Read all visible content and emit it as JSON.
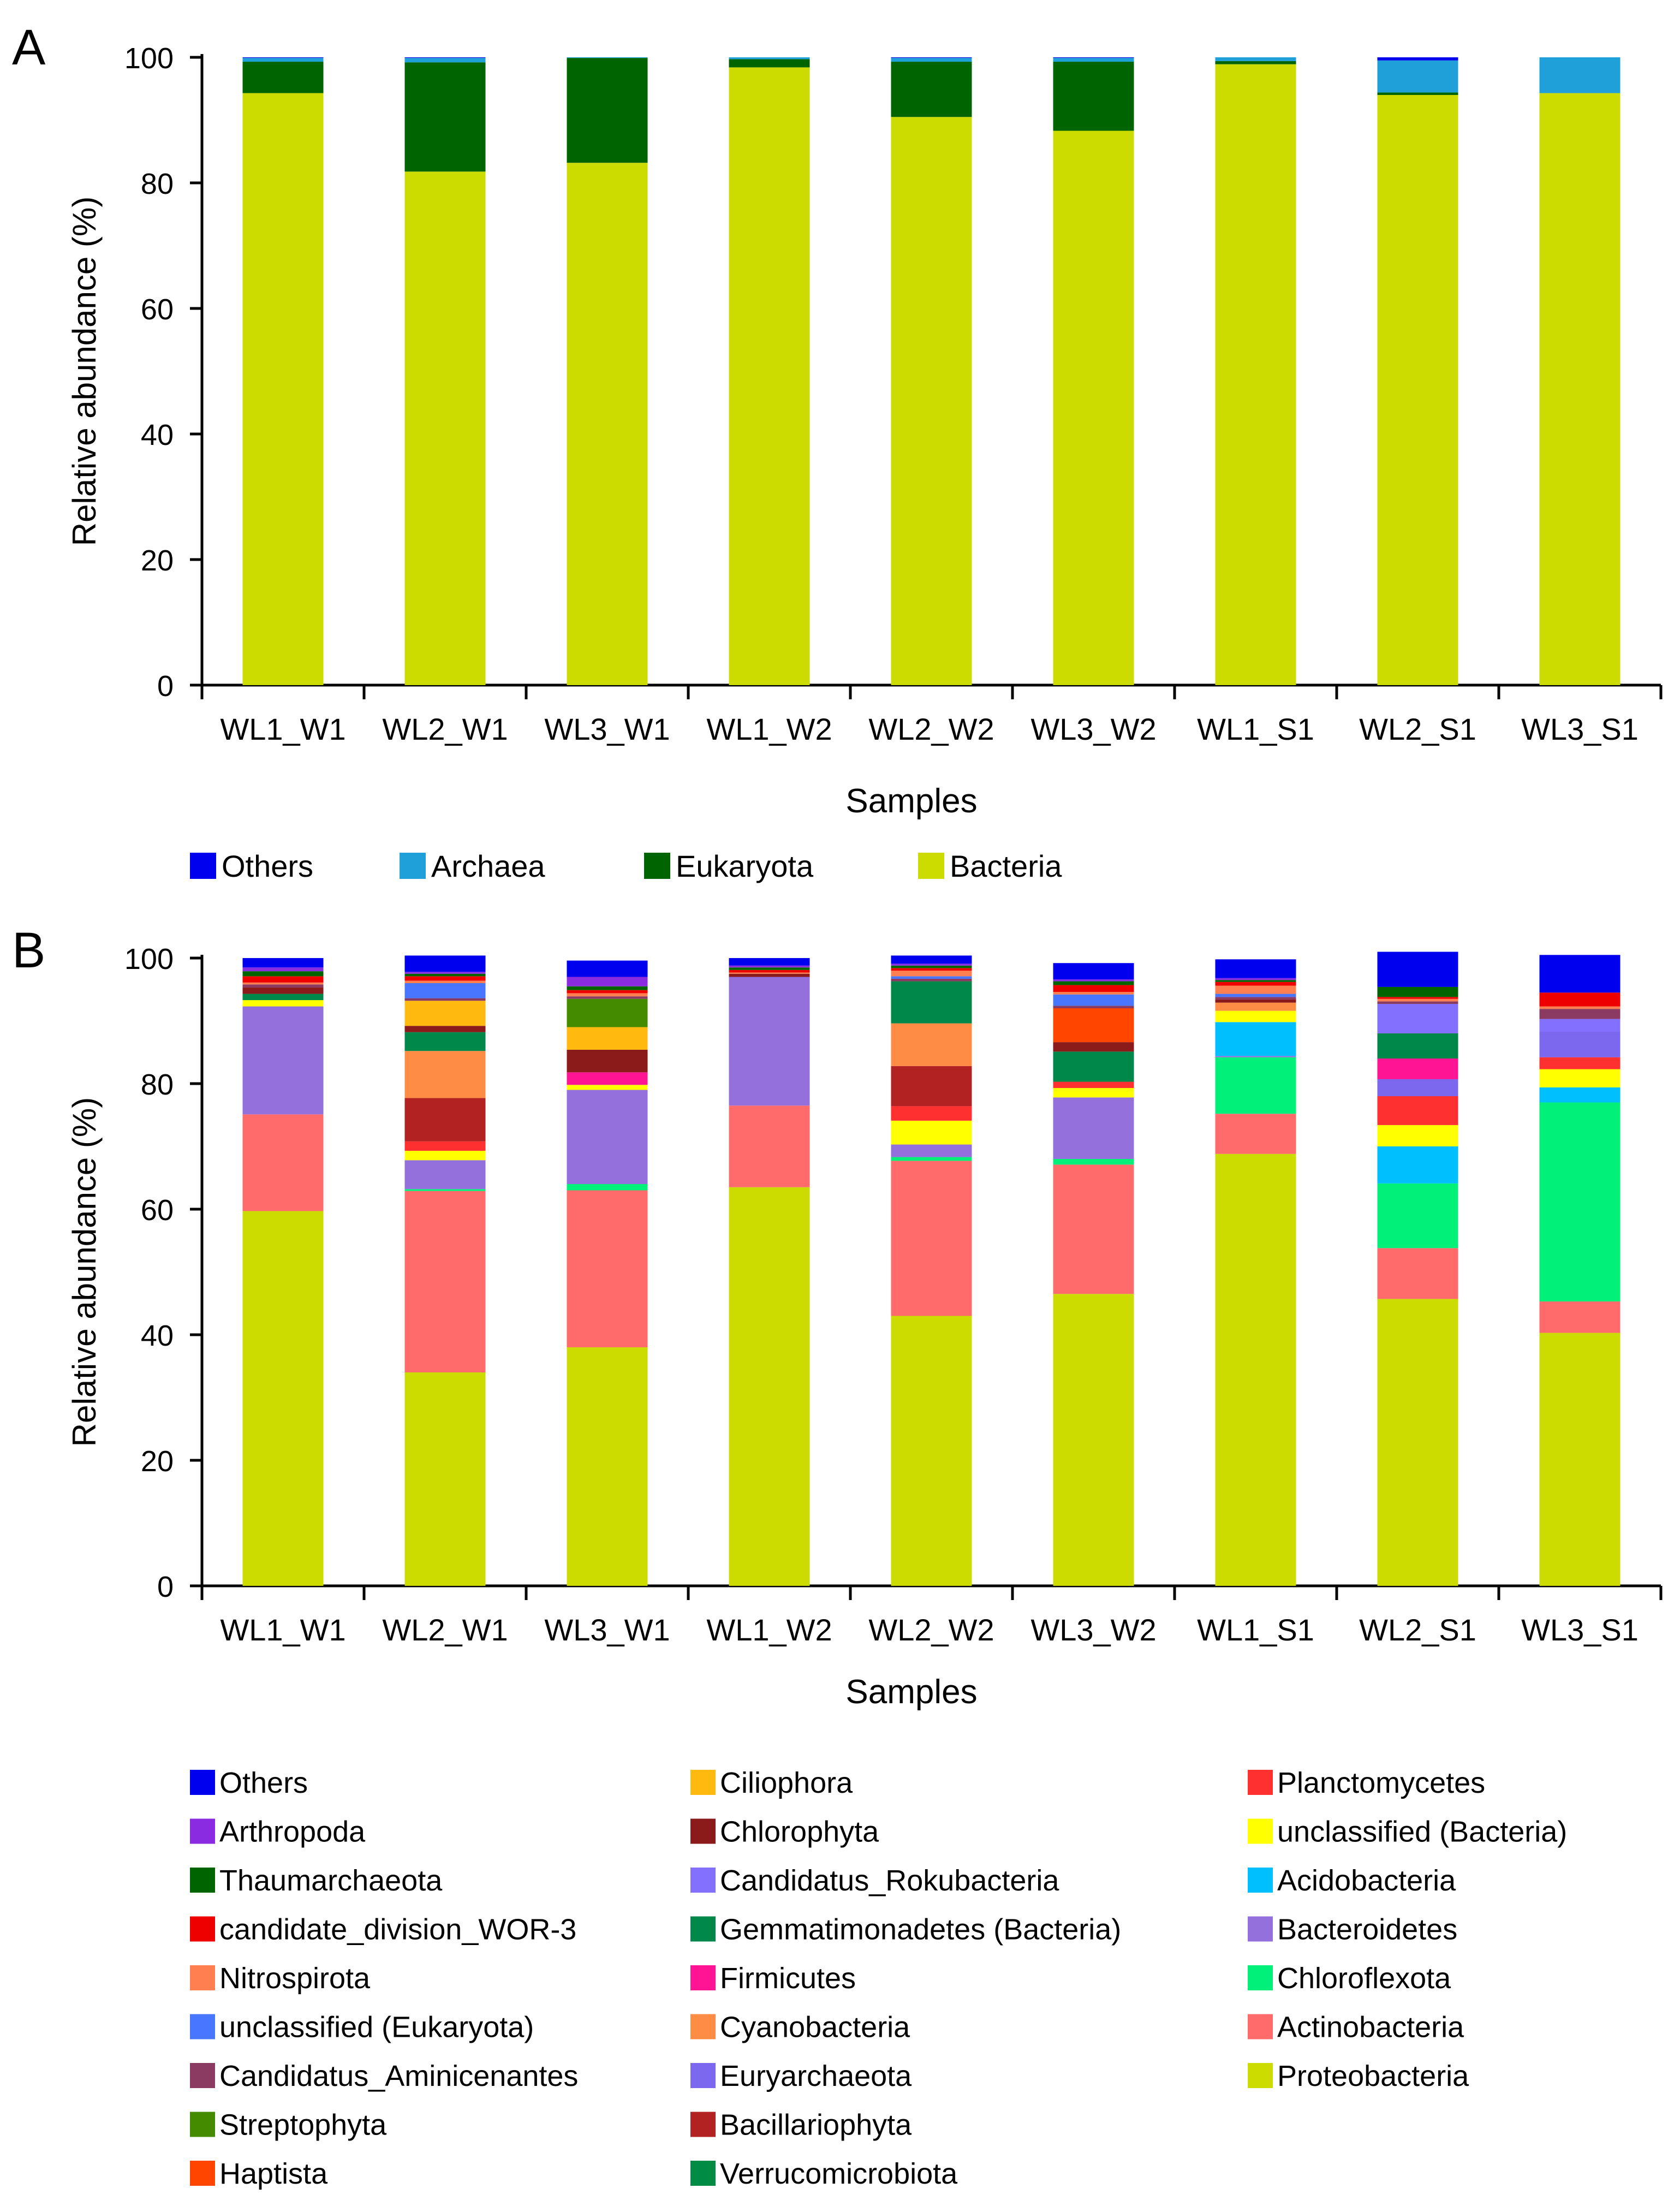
{
  "chart_data": [
    {
      "panel": "A",
      "type": "bar",
      "stacked": true,
      "xlabel": "Samples",
      "ylabel": "Relative abundance (%)",
      "ylim": [
        0,
        100
      ],
      "yticks": [
        0,
        20,
        40,
        60,
        80,
        100
      ],
      "categories": [
        "WL1_W1",
        "WL2_W1",
        "WL3_W1",
        "WL1_W2",
        "WL2_W2",
        "WL3_W2",
        "WL1_S1",
        "WL2_S1",
        "WL3_S1"
      ],
      "legend_position": "bottom",
      "legend": [
        "Others",
        "Archaea",
        "Eukaryota",
        "Bacteria"
      ],
      "series": [
        {
          "name": "Bacteria",
          "color": "#CCDB00",
          "values": [
            94.3,
            81.8,
            83.2,
            98.4,
            90.5,
            88.3,
            98.9,
            94.0,
            94.3
          ]
        },
        {
          "name": "Eukaryota",
          "color": "#006400",
          "values": [
            5.0,
            17.4,
            16.7,
            1.3,
            8.8,
            11.0,
            0.5,
            0.4,
            0.0
          ]
        },
        {
          "name": "Archaea",
          "color": "#1FA0D8",
          "values": [
            0.6,
            0.7,
            0.1,
            0.3,
            0.6,
            0.6,
            0.6,
            5.1,
            5.7
          ]
        },
        {
          "name": "Others",
          "color": "#0000EE",
          "values": [
            0.1,
            0.1,
            0.0,
            0.0,
            0.1,
            0.1,
            0.0,
            0.5,
            0.0
          ]
        }
      ]
    },
    {
      "panel": "B",
      "type": "bar",
      "stacked": true,
      "xlabel": "Samples",
      "ylabel": "Relative abundance (%)",
      "ylim": [
        0,
        100
      ],
      "yticks": [
        0,
        20,
        40,
        60,
        80,
        100
      ],
      "categories": [
        "WL1_W1",
        "WL2_W1",
        "WL3_W1",
        "WL1_W2",
        "WL2_W2",
        "WL3_W2",
        "WL1_S1",
        "WL2_S1",
        "WL3_S1"
      ],
      "legend_position": "bottom",
      "legend": [
        "Others",
        "Arthropoda",
        "Thaumarchaeota",
        "candidate_division_WOR-3",
        "Nitrospirota",
        "unclassified (Eukaryota)",
        "Candidatus_Aminicenantes",
        "Streptophyta",
        "Haptista",
        "Ciliophora",
        "Chlorophyta",
        "Candidatus_Rokubacteria",
        "Gemmatimonadetes (Bacteria)",
        "Firmicutes",
        "Cyanobacteria",
        "Euryarchaeota",
        "Bacillariophyta",
        "Verrucomicrobiota",
        "Planctomycetes",
        "unclassified (Bacteria)",
        "Acidobacteria",
        "Bacteroidetes",
        "Chloroflexota",
        "Actinobacteria",
        "Proteobacteria"
      ],
      "series": [
        {
          "name": "Proteobacteria",
          "color": "#CCDB00",
          "values": [
            59.7,
            34.0,
            38.0,
            63.5,
            43.0,
            46.5,
            68.8,
            45.7,
            40.3
          ]
        },
        {
          "name": "Actinobacteria",
          "color": "#FF6B6B",
          "values": [
            15.4,
            28.9,
            25.0,
            13.0,
            24.7,
            20.6,
            6.4,
            8.1,
            5.0
          ]
        },
        {
          "name": "Chloroflexota",
          "color": "#00F07A",
          "values": [
            0.0,
            0.3,
            1.0,
            0.0,
            0.6,
            0.9,
            9.0,
            10.3,
            31.7
          ]
        },
        {
          "name": "Bacteroidetes",
          "color": "#9370DB",
          "values": [
            17.2,
            4.6,
            15.0,
            20.5,
            2.0,
            9.8,
            0.2,
            0.0,
            0.0
          ]
        },
        {
          "name": "Acidobacteria",
          "color": "#00BFFF",
          "values": [
            0.0,
            0.0,
            0.0,
            0.0,
            0.0,
            0.0,
            5.4,
            5.9,
            2.4
          ]
        },
        {
          "name": "unclassified (Bacteria)",
          "color": "#FFFF00",
          "values": [
            1.0,
            1.5,
            0.8,
            0.0,
            3.8,
            1.5,
            1.8,
            3.4,
            2.9
          ]
        },
        {
          "name": "Planctomycetes",
          "color": "#FF3030",
          "values": [
            0.0,
            1.5,
            0.0,
            0.0,
            2.3,
            1.0,
            0.0,
            4.6,
            1.9
          ]
        },
        {
          "name": "Verrucomicrobiota",
          "color": "#008B45",
          "values": [
            0.0,
            0.0,
            0.0,
            0.0,
            0.0,
            0.0,
            0.0,
            0.0,
            0.0
          ]
        },
        {
          "name": "Bacillariophyta",
          "color": "#B22222",
          "values": [
            0.0,
            6.9,
            0.0,
            0.0,
            6.4,
            0.0,
            0.0,
            0.0,
            0.0
          ]
        },
        {
          "name": "Euryarchaeota",
          "color": "#7B68EE",
          "values": [
            0.0,
            0.0,
            0.0,
            0.0,
            0.0,
            0.0,
            0.0,
            2.7,
            4.1
          ]
        },
        {
          "name": "Cyanobacteria",
          "color": "#FF8C45",
          "values": [
            0.0,
            7.5,
            0.0,
            0.0,
            6.8,
            0.0,
            1.3,
            0.0,
            0.0
          ]
        },
        {
          "name": "Firmicutes",
          "color": "#FF1493",
          "values": [
            0.0,
            0.0,
            2.0,
            0.0,
            0.0,
            0.0,
            0.0,
            3.3,
            0.0
          ]
        },
        {
          "name": "Gemmatimonadetes (Bacteria)",
          "color": "#00874A",
          "values": [
            1.0,
            3.0,
            0.0,
            0.0,
            6.7,
            4.8,
            0.0,
            4.0,
            0.0
          ]
        },
        {
          "name": "Candidatus_Rokubacteria",
          "color": "#8470FF",
          "values": [
            0.0,
            0.0,
            0.0,
            0.0,
            0.0,
            0.0,
            0.0,
            4.7,
            2.0
          ]
        },
        {
          "name": "Chlorophyta",
          "color": "#8B1A1A",
          "values": [
            1.0,
            1.0,
            3.6,
            0.5,
            0.0,
            1.5,
            0.5,
            0.0,
            0.0
          ]
        },
        {
          "name": "Ciliophora",
          "color": "#FFB90F",
          "values": [
            0.0,
            4.0,
            3.6,
            0.0,
            0.0,
            0.0,
            0.0,
            0.0,
            0.0
          ]
        },
        {
          "name": "Haptista",
          "color": "#FF4500",
          "values": [
            0.0,
            0.0,
            0.0,
            0.0,
            0.0,
            5.4,
            0.0,
            0.0,
            0.0
          ]
        },
        {
          "name": "Streptophyta",
          "color": "#458B00",
          "values": [
            0.0,
            0.0,
            4.5,
            0.0,
            0.0,
            0.0,
            0.0,
            0.0,
            0.0
          ]
        },
        {
          "name": "Candidatus_Aminicenantes",
          "color": "#8B3A62",
          "values": [
            0.5,
            0.4,
            0.4,
            0.0,
            0.4,
            0.4,
            0.4,
            0.4,
            1.6
          ]
        },
        {
          "name": "unclassified (Eukaryota)",
          "color": "#4876FF",
          "values": [
            0.0,
            2.4,
            0.0,
            0.0,
            0.4,
            1.8,
            0.5,
            0.0,
            0.0
          ]
        },
        {
          "name": "Nitrospirota",
          "color": "#FF7F50",
          "values": [
            0.3,
            0.4,
            0.5,
            0.2,
            0.9,
            0.4,
            1.3,
            0.4,
            0.4
          ]
        },
        {
          "name": "candidate_division_WOR-3",
          "color": "#EE0000",
          "values": [
            1.0,
            0.7,
            0.5,
            0.4,
            0.4,
            1.1,
            0.6,
            0.3,
            2.2
          ]
        },
        {
          "name": "Thaumarchaeota",
          "color": "#006400",
          "values": [
            0.8,
            0.4,
            0.6,
            0.4,
            0.4,
            0.6,
            0.3,
            1.6,
            0.0
          ]
        },
        {
          "name": "Arthropoda",
          "color": "#8A2BE2",
          "values": [
            0.6,
            0.3,
            1.5,
            0.3,
            0.3,
            0.3,
            0.3,
            0.0,
            0.0
          ]
        },
        {
          "name": "Others",
          "color": "#0000EE",
          "values": [
            1.5,
            2.6,
            2.6,
            1.2,
            1.3,
            2.6,
            3.0,
            5.6,
            6.0
          ]
        }
      ]
    }
  ]
}
